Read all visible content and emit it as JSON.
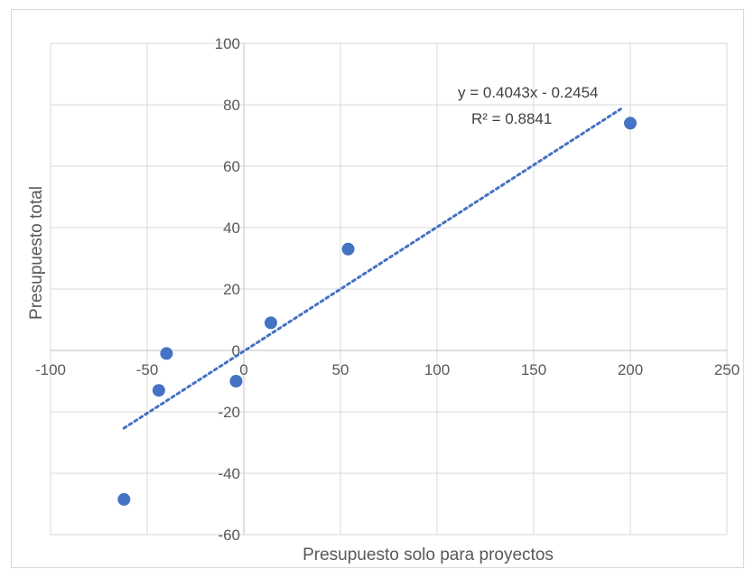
{
  "chart_data": {
    "type": "scatter",
    "title": "",
    "xlabel": "Presupuesto solo para proyectos",
    "ylabel": "Presupuesto total",
    "xlim": [
      -100,
      250
    ],
    "ylim": [
      -60,
      100
    ],
    "x_ticks": [
      -100,
      -50,
      0,
      50,
      100,
      150,
      200,
      250
    ],
    "y_ticks": [
      -60,
      -40,
      -20,
      0,
      20,
      40,
      60,
      80,
      100
    ],
    "x_tick_labels": [
      "-100",
      "-50",
      "0",
      "50",
      "100",
      "150",
      "200",
      "250"
    ],
    "y_tick_labels": [
      "-60",
      "-40",
      "-20",
      "0",
      "20",
      "40",
      "60",
      "80",
      "100"
    ],
    "grid": true,
    "legend": "none",
    "marker_color": "#4472c4",
    "series": [
      {
        "x": [
          -62,
          -44,
          -40,
          -4,
          14,
          54,
          200
        ],
        "y": [
          -48.5,
          -13,
          -1,
          -10,
          9,
          33,
          74
        ]
      }
    ],
    "trendline": {
      "type": "linear",
      "slope": 0.4043,
      "intercept": -0.2454,
      "x_range": [
        -62,
        195
      ],
      "equation_label": "y = 0.4043x - 0.2454",
      "r2_label": "R² = 0.8841",
      "color": "#4472c4",
      "style": "dotted"
    }
  }
}
